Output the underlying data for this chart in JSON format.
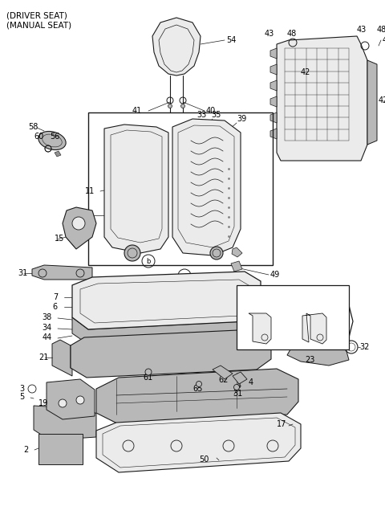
{
  "title_line1": "(DRIVER SEAT)",
  "title_line2": "(MANUAL SEAT)",
  "bg_color": "#ffffff",
  "line_color": "#1a1a1a",
  "label_color": "#000000",
  "font_size_title": 7.5,
  "font_size_label": 7,
  "fig_width": 4.8,
  "fig_height": 6.56,
  "dpi": 100,
  "gray_light": "#d4d4d4",
  "gray_mid": "#b8b8b8",
  "gray_dark": "#909090",
  "gray_very_light": "#ebebeb"
}
